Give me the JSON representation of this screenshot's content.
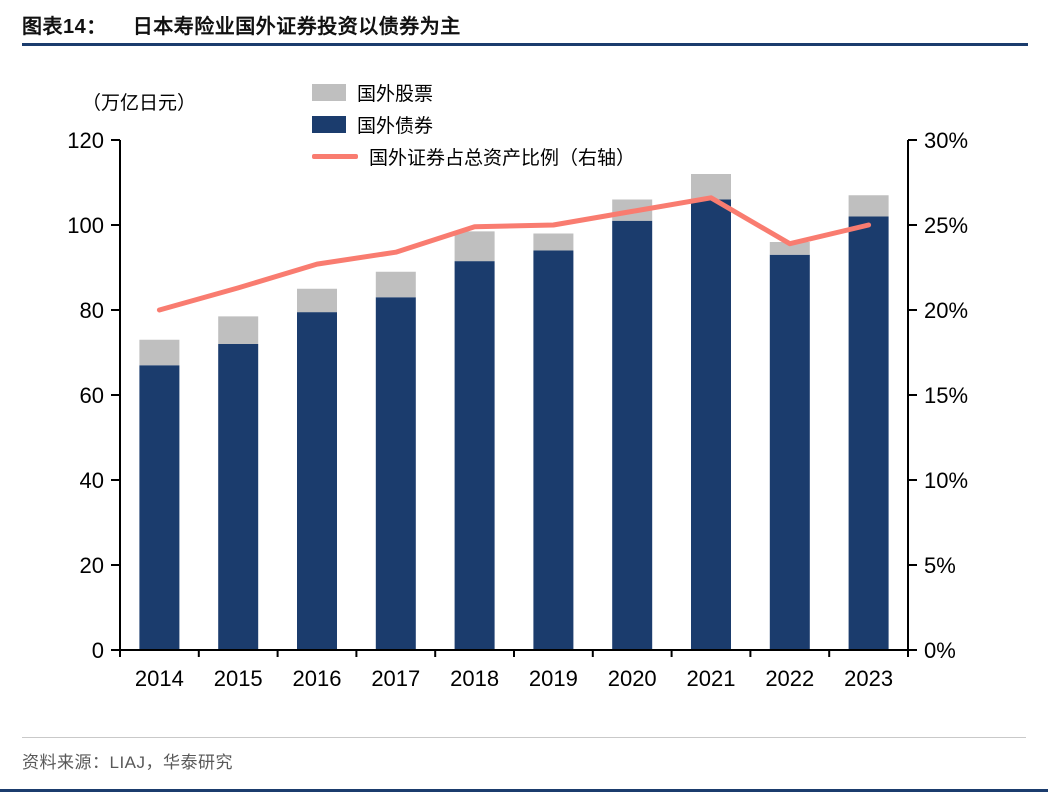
{
  "header": {
    "label": "图表14：",
    "title": "日本寿险业国外证券投资以债券为主"
  },
  "footer": {
    "source": "资料来源：LIAJ，华泰研究"
  },
  "colors": {
    "navy": "#1B3C6D",
    "gray": "#BFBFBF",
    "coral": "#F97C70",
    "title_rule": "#1B3C6D",
    "axis": "#000000"
  },
  "chart_data": {
    "type": "bar",
    "stacked": true,
    "title": "日本寿险业国外证券投资以债券为主",
    "unit_label": "（万亿日元）",
    "grid": false,
    "legend_position": "top",
    "categories": [
      "2014",
      "2015",
      "2016",
      "2017",
      "2018",
      "2019",
      "2020",
      "2021",
      "2022",
      "2023"
    ],
    "series": [
      {
        "name": "国外债券",
        "type": "bar",
        "stack_order": 0,
        "axis": "left",
        "color": "#1B3C6D",
        "values": [
          67,
          72,
          79.5,
          83,
          91.5,
          94,
          101,
          106,
          93,
          102
        ]
      },
      {
        "name": "国外股票",
        "type": "bar",
        "stack_order": 1,
        "axis": "left",
        "color": "#BFBFBF",
        "values": [
          6,
          6.5,
          5.5,
          6,
          7,
          4,
          5,
          6,
          3,
          5
        ]
      },
      {
        "name": "国外证券占总资产比例（右轴）",
        "type": "line",
        "axis": "right",
        "color": "#F97C70",
        "values": [
          20.0,
          21.3,
          22.7,
          23.4,
          24.9,
          25.0,
          25.8,
          26.6,
          23.9,
          25.0
        ]
      }
    ],
    "left_axis": {
      "min": 0,
      "max": 120,
      "step": 20,
      "ticks": [
        "0",
        "20",
        "40",
        "60",
        "80",
        "100",
        "120"
      ]
    },
    "right_axis": {
      "min": 0,
      "max": 30,
      "step": 5,
      "suffix": "%",
      "ticks": [
        "0%",
        "5%",
        "10%",
        "15%",
        "20%",
        "25%",
        "30%"
      ]
    }
  }
}
